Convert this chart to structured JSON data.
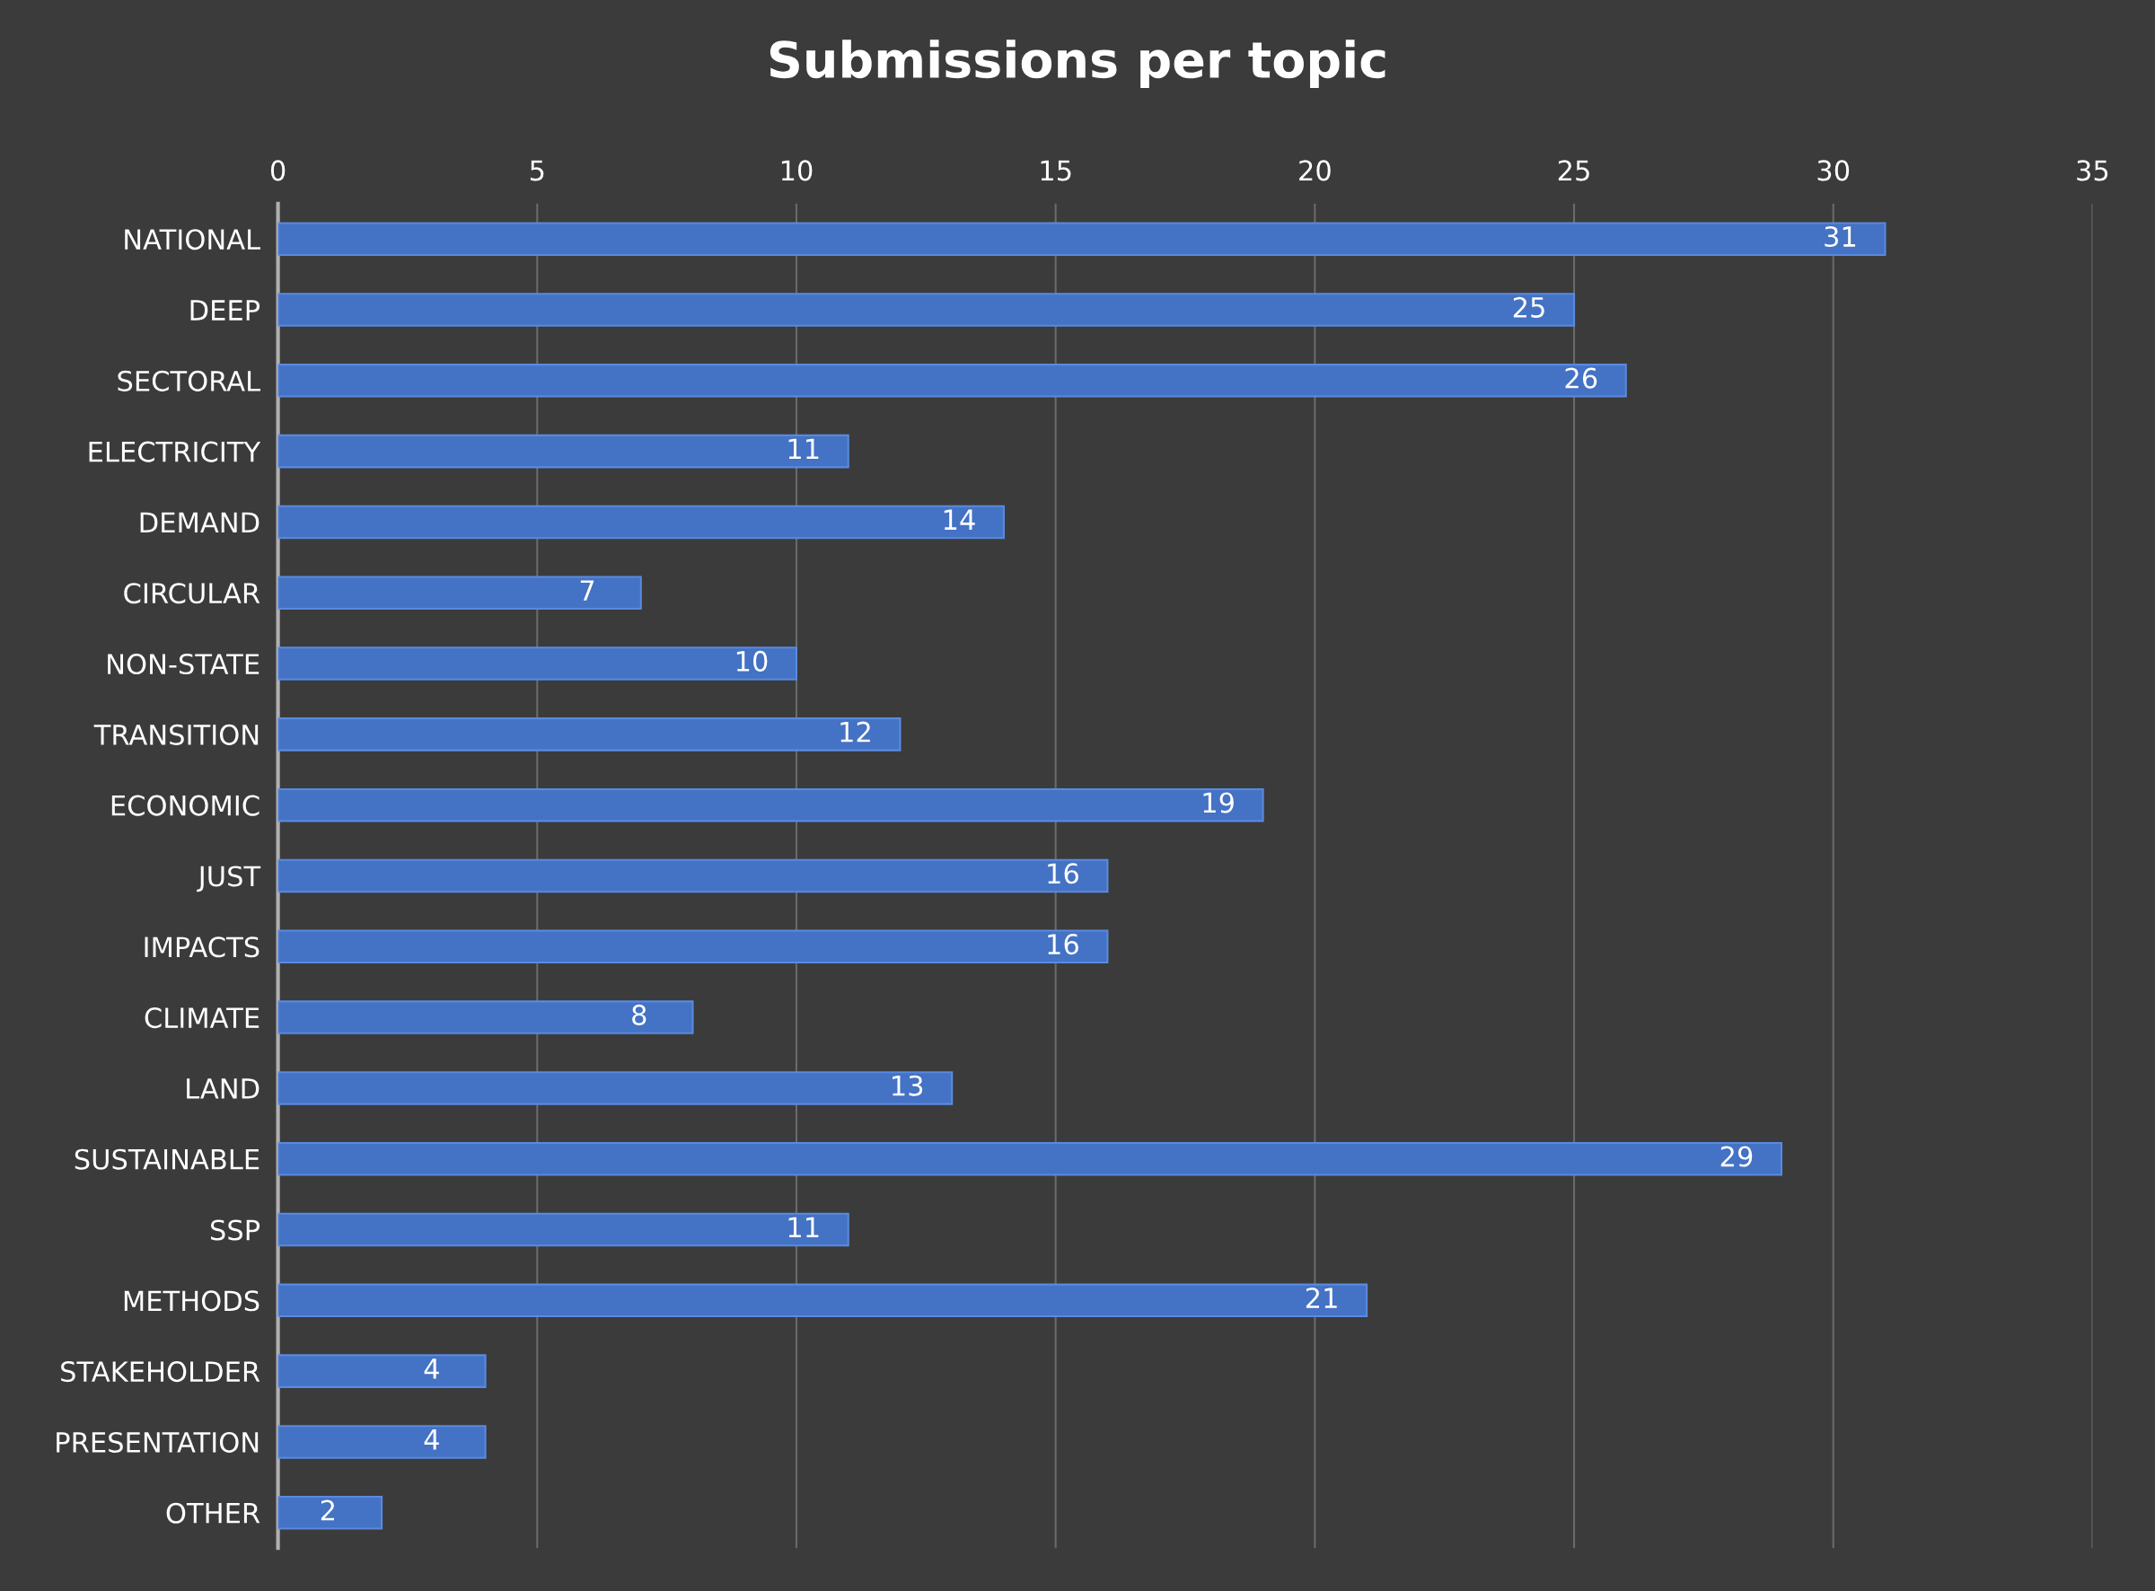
{
  "chart_data": {
    "type": "bar",
    "orientation": "horizontal",
    "title": "Submissions per topic",
    "categories": [
      "NATIONAL",
      "DEEP",
      "SECTORAL",
      "ELECTRICITY",
      "DEMAND",
      "CIRCULAR",
      "NON-STATE",
      "TRANSITION",
      "ECONOMIC",
      "JUST",
      "IMPACTS",
      "CLIMATE",
      "LAND",
      "SUSTAINABLE",
      "SSP",
      "METHODS",
      "STAKEHOLDER",
      "PRESENTATION",
      "OTHER"
    ],
    "values": [
      31,
      25,
      26,
      11,
      14,
      7,
      10,
      12,
      19,
      16,
      16,
      8,
      13,
      29,
      11,
      21,
      4,
      4,
      2
    ],
    "color": "#4472c4",
    "xlim": [
      0,
      35
    ],
    "xticks": [
      0,
      5,
      10,
      15,
      20,
      25,
      30,
      35
    ],
    "grid": "x",
    "data_labels": true
  }
}
